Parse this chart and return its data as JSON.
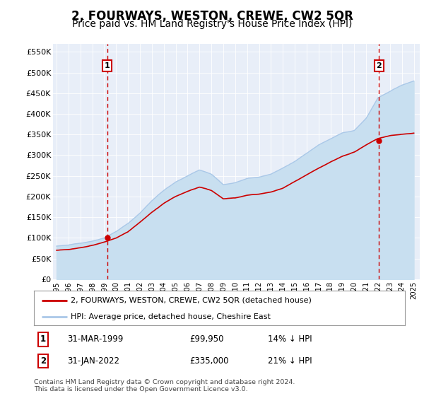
{
  "title": "2, FOURWAYS, WESTON, CREWE, CW2 5QR",
  "subtitle": "Price paid vs. HM Land Registry's House Price Index (HPI)",
  "ylabel_ticks": [
    "£0",
    "£50K",
    "£100K",
    "£150K",
    "£200K",
    "£250K",
    "£300K",
    "£350K",
    "£400K",
    "£450K",
    "£500K",
    "£550K"
  ],
  "ytick_values": [
    0,
    50000,
    100000,
    150000,
    200000,
    250000,
    300000,
    350000,
    400000,
    450000,
    500000,
    550000
  ],
  "xlim": [
    1994.7,
    2025.5
  ],
  "ylim": [
    0,
    570000
  ],
  "hpi_color": "#aac8e8",
  "hpi_fill_color": "#c8dff0",
  "price_color": "#cc0000",
  "vline_color": "#cc0000",
  "plot_bg_color": "#e8eef8",
  "grid_color": "#ffffff",
  "marker1_x": 1999.25,
  "marker1_y": 99950,
  "marker1_label": "1",
  "marker1_date": "31-MAR-1999",
  "marker1_price": "£99,950",
  "marker1_hpi": "14% ↓ HPI",
  "marker2_x": 2022.08,
  "marker2_y": 335000,
  "marker2_label": "2",
  "marker2_date": "31-JAN-2022",
  "marker2_price": "£335,000",
  "marker2_hpi": "21% ↓ HPI",
  "legend_line1": "2, FOURWAYS, WESTON, CREWE, CW2 5QR (detached house)",
  "legend_line2": "HPI: Average price, detached house, Cheshire East",
  "footer": "Contains HM Land Registry data © Crown copyright and database right 2024.\nThis data is licensed under the Open Government Licence v3.0.",
  "title_fontsize": 12,
  "subtitle_fontsize": 10,
  "hpi_knots_x": [
    1995,
    1996,
    1997,
    1998,
    1999,
    2000,
    2001,
    2002,
    2003,
    2004,
    2005,
    2006,
    2007,
    2008,
    2009,
    2010,
    2011,
    2012,
    2013,
    2014,
    2015,
    2016,
    2017,
    2018,
    2019,
    2020,
    2021,
    2022,
    2023,
    2024,
    2025
  ],
  "hpi_knots_y": [
    80000,
    82000,
    87000,
    92000,
    100000,
    115000,
    135000,
    160000,
    190000,
    215000,
    235000,
    250000,
    265000,
    255000,
    230000,
    235000,
    245000,
    248000,
    255000,
    270000,
    285000,
    305000,
    325000,
    340000,
    355000,
    360000,
    390000,
    440000,
    455000,
    470000,
    480000
  ],
  "price_knots_x": [
    1995,
    1996,
    1997,
    1998,
    1999,
    2000,
    2001,
    2002,
    2003,
    2004,
    2005,
    2006,
    2007,
    2008,
    2009,
    2010,
    2011,
    2012,
    2013,
    2014,
    2015,
    2016,
    2017,
    2018,
    2019,
    2020,
    2021,
    2022,
    2023,
    2024,
    2025
  ],
  "price_knots_y": [
    70000,
    72000,
    76000,
    82000,
    90000,
    100000,
    115000,
    138000,
    162000,
    183000,
    200000,
    212000,
    222000,
    214000,
    194000,
    196000,
    202000,
    205000,
    210000,
    220000,
    236000,
    252000,
    268000,
    284000,
    298000,
    308000,
    325000,
    340000,
    348000,
    352000,
    355000
  ]
}
